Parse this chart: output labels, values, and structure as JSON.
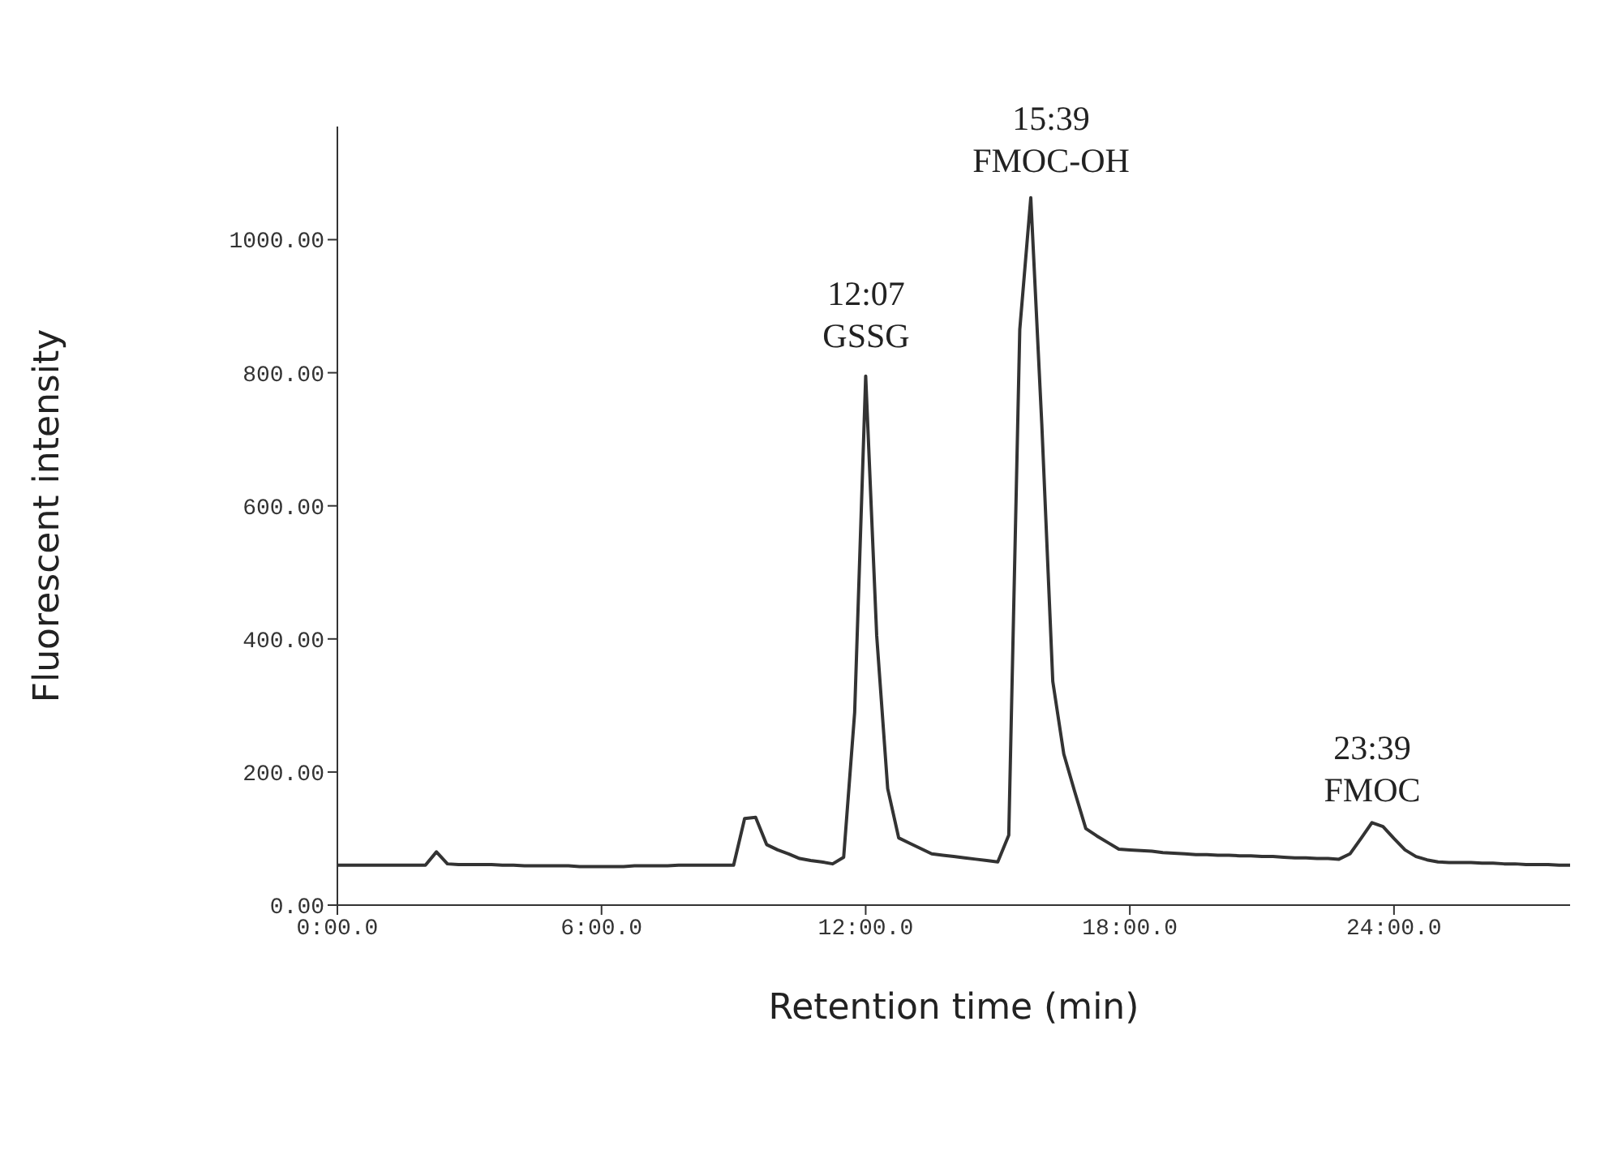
{
  "chart_data": {
    "type": "line",
    "xlabel": "Retention time (min)",
    "ylabel": "Fluorescent intensity",
    "categories": [
      "0:00.0",
      null,
      null,
      null,
      null,
      null,
      null,
      null,
      null,
      null,
      null,
      null,
      null,
      null,
      null,
      null,
      null,
      null,
      null,
      null,
      null,
      null,
      null,
      null,
      "6:00.0",
      null,
      null,
      null,
      null,
      null,
      null,
      null,
      null,
      null,
      null,
      null,
      null,
      null,
      null,
      null,
      null,
      null,
      null,
      null,
      null,
      null,
      null,
      null,
      "12:00.0",
      null,
      null,
      null,
      null,
      null,
      null,
      null,
      null,
      null,
      null,
      null,
      null,
      null,
      null,
      null,
      null,
      null,
      null,
      null,
      null,
      null,
      null,
      null,
      "18:00.0",
      null,
      null,
      null,
      null,
      null,
      null,
      null,
      null,
      null,
      null,
      null,
      null,
      null,
      null,
      null,
      null,
      null,
      null,
      null,
      null,
      null,
      null,
      null,
      "24:00.0",
      null,
      null,
      null,
      null,
      null,
      null,
      null,
      null,
      null,
      null,
      null,
      null,
      null,
      null,
      null,
      null
    ],
    "series": [
      {
        "color": "#333333",
        "values": [
          60,
          60,
          60,
          60,
          60,
          60,
          60,
          60,
          60,
          80,
          62,
          61,
          61,
          61,
          61,
          60,
          60,
          59,
          59,
          59,
          59,
          59,
          58,
          58,
          58,
          58,
          58,
          59,
          59,
          59,
          59,
          60,
          60,
          60,
          60,
          60,
          60,
          130,
          132,
          91,
          83,
          77,
          70,
          67,
          65,
          62,
          72,
          290,
          795,
          405,
          175,
          101,
          93,
          85,
          77,
          75,
          73,
          71,
          69,
          67,
          65,
          105,
          865,
          1063,
          723,
          336,
          227,
          170,
          115,
          104,
          94,
          84,
          83,
          82,
          81,
          79,
          78,
          77,
          76,
          76,
          75,
          75,
          74,
          74,
          73,
          73,
          72,
          71,
          71,
          70,
          70,
          69,
          77,
          100,
          124,
          118,
          100,
          83,
          73,
          68,
          65,
          64,
          64,
          64,
          63,
          63,
          62,
          62,
          61,
          61,
          61,
          60,
          60
        ]
      }
    ],
    "ylim": [
      0,
      1170
    ],
    "yticks": [
      {
        "value": 0,
        "label": "0.00"
      },
      {
        "value": 200,
        "label": "200.00"
      },
      {
        "value": 400,
        "label": "400.00"
      },
      {
        "value": 600,
        "label": "600.00"
      },
      {
        "value": 800,
        "label": "800.00"
      },
      {
        "value": 1000,
        "label": "1000.00"
      }
    ],
    "annotations": [
      "12:07\nGSSG",
      "15:39\nFMOC-OH",
      "23:39\nFMOC"
    ],
    "grid": false,
    "legend": false,
    "marker": "none",
    "line_style": "solid"
  }
}
